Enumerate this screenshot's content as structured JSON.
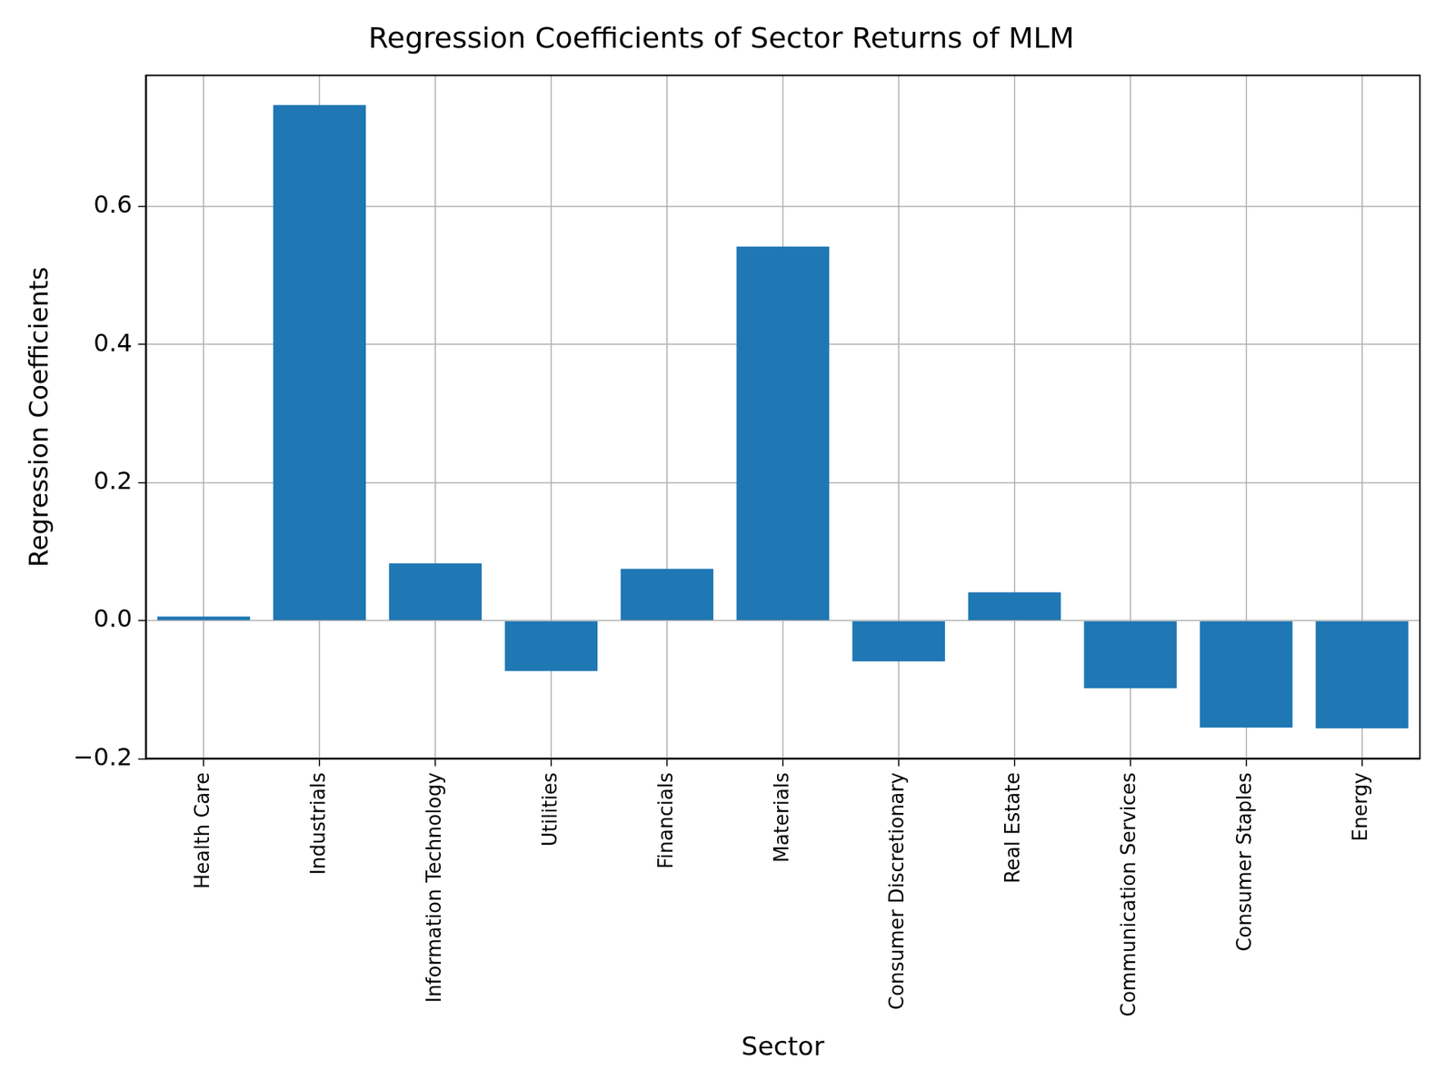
{
  "chart_data": {
    "type": "bar",
    "title": "Regression Coefficients of Sector Returns of MLM",
    "x_label": "Sector",
    "y_label": "Regression Coefficients",
    "categories": [
      "Health Care",
      "Industrials",
      "Information Technology",
      "Utilities",
      "Financials",
      "Materials",
      "Consumer Discretionary",
      "Real Estate",
      "Communication Services",
      "Consumer Staples",
      "Energy"
    ],
    "values": [
      0.006,
      0.747,
      0.083,
      -0.073,
      0.075,
      0.542,
      -0.059,
      0.041,
      -0.098,
      -0.155,
      -0.156
    ],
    "color": "#1f77b4",
    "ylim": [
      -0.2,
      0.79
    ],
    "yticks": [
      {
        "value": -0.2,
        "label": "−0.2"
      },
      {
        "value": 0,
        "label": "0.0"
      },
      {
        "value": 0.2,
        "label": "0.2"
      },
      {
        "value": 0.4,
        "label": "0.4"
      },
      {
        "value": 0.6,
        "label": "0.6"
      }
    ],
    "grid": true
  }
}
